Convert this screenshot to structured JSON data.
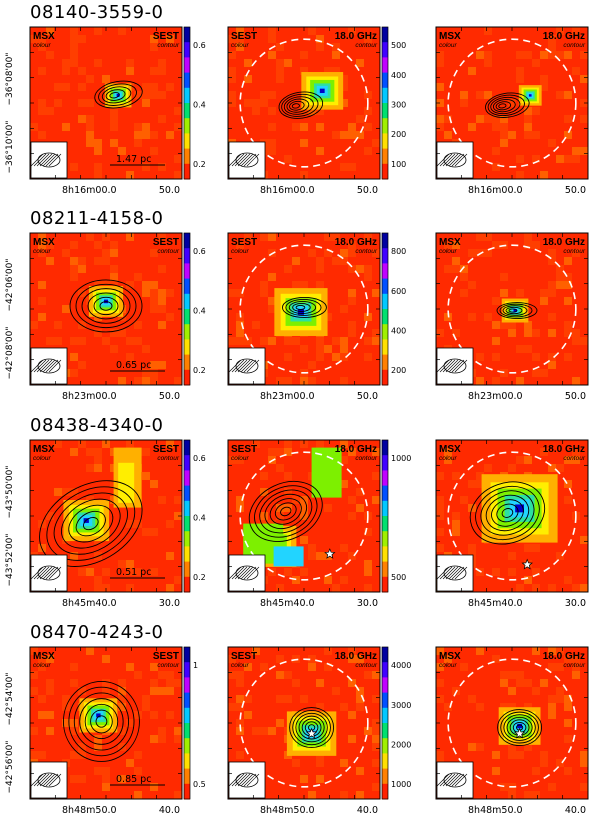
{
  "figure": {
    "rows": [
      {
        "source": "08140-3559-0",
        "panels": [
          {
            "left": "MSX",
            "left_sub": "colour",
            "right": "SEST",
            "right_sub": "contour",
            "colorbar": [
              "0.6",
              "0.4",
              "0.2"
            ],
            "scale_bar": "1.47 pc"
          },
          {
            "left": "SEST",
            "left_sub": "colour",
            "right": "18.0 GHz",
            "right_sub": "contour",
            "colorbar": [
              "500",
              "400",
              "300",
              "200",
              "100"
            ]
          },
          {
            "left": "MSX",
            "left_sub": "colour",
            "right": "18.0 GHz",
            "right_sub": "contour"
          }
        ],
        "dec_ticks": [
          "−36°08'00\"",
          "−36°10'00\""
        ],
        "ra_ticks": [
          "8h16m00.0",
          "50.0"
        ]
      },
      {
        "source": "08211-4158-0",
        "panels": [
          {
            "left": "MSX",
            "left_sub": "colour",
            "right": "SEST",
            "right_sub": "contour",
            "colorbar": [
              "0.6",
              "0.4",
              "0.2"
            ],
            "scale_bar": "0.65 pc"
          },
          {
            "left": "SEST",
            "left_sub": "colour",
            "right": "18.0 GHz",
            "right_sub": "contour",
            "colorbar": [
              "800",
              "600",
              "400",
              "200"
            ]
          },
          {
            "left": "MSX",
            "left_sub": "colour",
            "right": "18.0 GHz",
            "right_sub": "contour"
          }
        ],
        "dec_ticks": [
          "−42°06'00\"",
          "−42°08'00\""
        ],
        "ra_ticks": [
          "8h23m00.0",
          "50.0"
        ]
      },
      {
        "source": "08438-4340-0",
        "panels": [
          {
            "left": "MSX",
            "left_sub": "colour",
            "right": "SEST",
            "right_sub": "contour",
            "colorbar": [
              "0.6",
              "0.4",
              "0.2"
            ],
            "scale_bar": "0.51 pc"
          },
          {
            "left": "SEST",
            "left_sub": "colour",
            "right": "18.0 GHz",
            "right_sub": "contour",
            "colorbar": [
              "1000",
              "500"
            ]
          },
          {
            "left": "MSX",
            "left_sub": "colour",
            "right": "18.0 GHz",
            "right_sub": "contour"
          }
        ],
        "dec_ticks": [
          "−43°50'00\"",
          "−43°52'00\""
        ],
        "ra_ticks": [
          "8h45m40.0",
          "30.0"
        ]
      },
      {
        "source": "08470-4243-0",
        "panels": [
          {
            "left": "MSX",
            "left_sub": "colour",
            "right": "SEST",
            "right_sub": "contour",
            "colorbar": [
              "1",
              "0.5"
            ],
            "scale_bar": "0.85 pc"
          },
          {
            "left": "SEST",
            "left_sub": "colour",
            "right": "18.0 GHz",
            "right_sub": "contour",
            "colorbar": [
              "4000",
              "3000",
              "2000",
              "1000"
            ]
          },
          {
            "left": "MSX",
            "left_sub": "colour",
            "right": "18.0 GHz",
            "right_sub": "contour"
          }
        ],
        "dec_ticks": [
          "−42°54'00\"",
          "−42°56'00\""
        ],
        "ra_ticks": [
          "8h48m50.0",
          "40.0"
        ]
      }
    ]
  },
  "colors": {
    "background_map": "#ff2a00",
    "peak": "#0000c8",
    "mid": "#22d4ff",
    "outer": "#7df000",
    "contour": "#000000",
    "circle": "#ffffff"
  }
}
